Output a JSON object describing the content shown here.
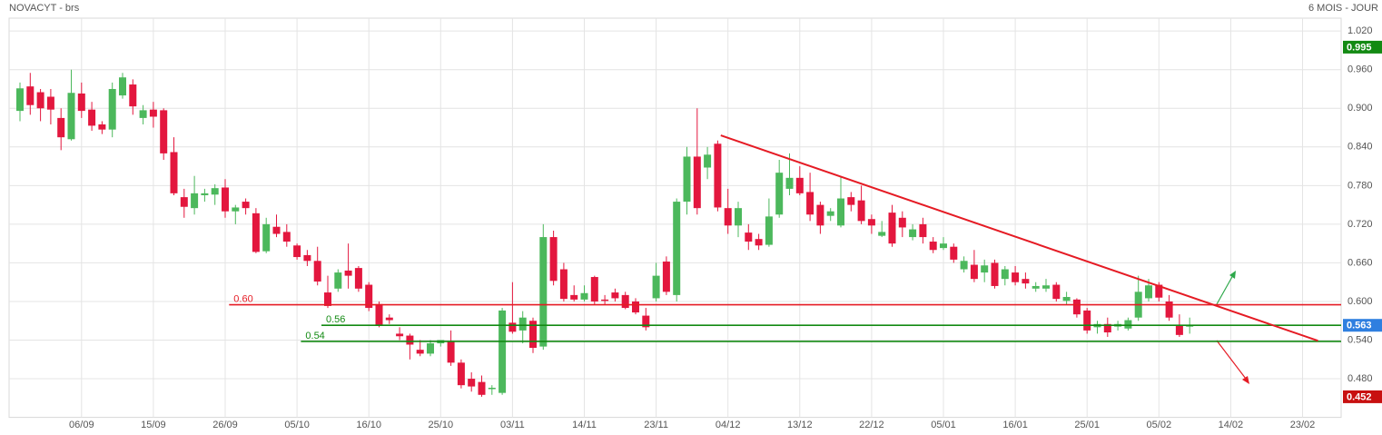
{
  "chart_data": {
    "type": "candlestick",
    "title": "NOVACYT - brs",
    "subtitle": "6 MOIS - JOUR",
    "categories": [
      null,
      null,
      null,
      null,
      null,
      null,
      "06/09",
      null,
      null,
      null,
      null,
      null,
      null,
      "15/09",
      null,
      null,
      null,
      null,
      null,
      null,
      "26/09",
      null,
      null,
      null,
      null,
      null,
      null,
      "05/10",
      null,
      null,
      null,
      null,
      null,
      null,
      "16/10",
      null,
      null,
      null,
      null,
      null,
      null,
      "25/10",
      null,
      null,
      null,
      null,
      null,
      null,
      "03/11",
      null,
      null,
      null,
      null,
      null,
      null,
      "14/11",
      null,
      null,
      null,
      null,
      null,
      null,
      "23/11",
      null,
      null,
      null,
      null,
      null,
      null,
      "04/12",
      null,
      null,
      null,
      null,
      null,
      null,
      "13/12",
      null,
      null,
      null,
      null,
      null,
      null,
      "22/12",
      null,
      null,
      null,
      null,
      null,
      null,
      "05/01",
      null,
      null,
      null,
      null,
      null,
      null,
      "16/01",
      null,
      null,
      null,
      null,
      null,
      null,
      "25/01",
      null,
      null,
      null,
      null,
      null,
      null,
      "05/02",
      null,
      null,
      null,
      null,
      null,
      null,
      "14/02",
      null,
      null,
      null,
      null,
      null,
      null,
      "23/02",
      null,
      null,
      null
    ],
    "open": [
      0.896,
      0.934,
      0.925,
      0.918,
      0.885,
      0.852,
      0.923,
      0.898,
      0.875,
      0.867,
      0.92,
      0.937,
      0.885,
      0.898,
      0.897,
      0.832,
      0.762,
      0.745,
      0.765,
      0.766,
      0.777,
      0.74,
      0.755,
      0.737,
      0.678,
      0.716,
      0.708,
      0.687,
      0.672,
      0.663,
      0.614,
      0.62,
      0.648,
      0.652,
      0.626,
      0.596,
      0.575,
      0.55,
      0.547,
      0.525,
      0.519,
      0.535,
      0.538,
      0.505,
      0.48,
      0.475,
      0.464,
      0.458,
      0.567,
      0.555,
      0.57,
      0.53,
      0.7,
      0.65,
      0.61,
      0.603,
      0.638,
      0.603,
      0.614,
      0.61,
      0.6,
      0.578,
      0.605,
      0.662,
      0.61,
      0.755,
      0.825,
      0.808,
      0.845,
      0.745,
      0.718,
      0.707,
      0.697,
      0.688,
      0.735,
      0.775,
      0.792,
      0.77,
      0.75,
      0.733,
      0.718,
      0.762,
      0.757,
      0.728,
      0.702,
      0.738,
      0.73,
      0.7,
      0.72,
      0.693,
      0.683,
      0.685,
      0.65,
      0.657,
      0.645,
      0.66,
      0.635,
      0.645,
      0.635,
      0.62,
      0.62,
      0.626,
      0.601,
      0.603,
      0.586,
      0.56,
      0.565,
      0.561,
      0.558,
      0.575,
      0.605,
      0.626,
      0.6,
      0.562,
      0.561,
      null,
      null,
      null,
      null,
      null,
      null,
      null,
      null,
      null,
      null,
      null,
      null,
      null,
      null
    ],
    "high": [
      0.94,
      0.955,
      0.93,
      0.93,
      0.9,
      0.96,
      0.94,
      0.91,
      0.88,
      0.94,
      0.955,
      0.945,
      0.905,
      0.91,
      0.9,
      0.855,
      0.775,
      0.795,
      0.775,
      0.782,
      0.79,
      0.75,
      0.76,
      0.745,
      0.73,
      0.735,
      0.72,
      0.69,
      0.68,
      0.685,
      0.64,
      0.65,
      0.69,
      0.655,
      0.63,
      0.6,
      0.58,
      0.56,
      0.55,
      0.54,
      0.54,
      0.54,
      0.555,
      0.51,
      0.49,
      0.485,
      0.47,
      0.59,
      0.63,
      0.585,
      0.575,
      0.72,
      0.71,
      0.66,
      0.625,
      0.625,
      0.64,
      0.61,
      0.62,
      0.615,
      0.605,
      0.59,
      0.66,
      0.67,
      0.76,
      0.84,
      0.9,
      0.84,
      0.85,
      0.775,
      0.755,
      0.72,
      0.705,
      0.76,
      0.82,
      0.83,
      0.81,
      0.8,
      0.755,
      0.745,
      0.795,
      0.77,
      0.78,
      0.735,
      0.725,
      0.75,
      0.74,
      0.72,
      0.73,
      0.7,
      0.7,
      0.69,
      0.67,
      0.68,
      0.665,
      0.665,
      0.655,
      0.655,
      0.645,
      0.63,
      0.635,
      0.63,
      0.615,
      0.605,
      0.59,
      0.57,
      0.575,
      0.57,
      0.575,
      0.64,
      0.635,
      0.63,
      0.61,
      0.58,
      0.575,
      null,
      null,
      null,
      null,
      null,
      null,
      null,
      null,
      null,
      null,
      null,
      null,
      null,
      null
    ],
    "low": [
      0.88,
      0.89,
      0.88,
      0.875,
      0.835,
      0.85,
      0.885,
      0.865,
      0.86,
      0.855,
      0.915,
      0.89,
      0.875,
      0.87,
      0.82,
      0.765,
      0.73,
      0.735,
      0.755,
      0.75,
      0.73,
      0.72,
      0.735,
      0.675,
      0.675,
      0.7,
      0.685,
      0.665,
      0.655,
      0.625,
      0.59,
      0.615,
      0.62,
      0.615,
      0.585,
      0.56,
      0.565,
      0.54,
      0.51,
      0.515,
      0.515,
      0.53,
      0.5,
      0.465,
      0.46,
      0.452,
      0.455,
      0.455,
      0.55,
      0.535,
      0.52,
      0.525,
      0.625,
      0.6,
      0.6,
      0.6,
      0.595,
      0.595,
      0.6,
      0.588,
      0.58,
      0.555,
      0.6,
      0.61,
      0.6,
      0.735,
      0.735,
      0.79,
      0.74,
      0.705,
      0.7,
      0.68,
      0.68,
      0.685,
      0.73,
      0.765,
      0.765,
      0.725,
      0.705,
      0.725,
      0.715,
      0.74,
      0.72,
      0.705,
      0.7,
      0.685,
      0.7,
      0.695,
      0.69,
      0.675,
      0.68,
      0.66,
      0.645,
      0.63,
      0.63,
      0.62,
      0.625,
      0.625,
      0.62,
      0.615,
      0.615,
      0.6,
      0.595,
      0.575,
      0.55,
      0.55,
      0.545,
      0.555,
      0.555,
      0.57,
      0.6,
      0.6,
      0.57,
      0.545,
      0.55,
      null,
      null,
      null,
      null,
      null,
      null,
      null,
      null,
      null,
      null,
      null,
      null,
      null,
      null
    ],
    "close": [
      0.931,
      0.905,
      0.9,
      0.898,
      0.855,
      0.924,
      0.896,
      0.873,
      0.867,
      0.93,
      0.948,
      0.903,
      0.897,
      0.887,
      0.83,
      0.768,
      0.747,
      0.768,
      0.768,
      0.776,
      0.74,
      0.746,
      0.745,
      0.677,
      0.72,
      0.705,
      0.693,
      0.669,
      0.663,
      0.631,
      0.593,
      0.645,
      0.64,
      0.62,
      0.59,
      0.563,
      0.571,
      0.546,
      0.533,
      0.519,
      0.535,
      0.54,
      0.505,
      0.47,
      0.468,
      0.455,
      0.466,
      0.586,
      0.553,
      0.575,
      0.528,
      0.7,
      0.632,
      0.604,
      0.603,
      0.613,
      0.6,
      0.601,
      0.605,
      0.59,
      0.583,
      0.56,
      0.64,
      0.615,
      0.755,
      0.825,
      0.745,
      0.828,
      0.746,
      0.718,
      0.745,
      0.693,
      0.687,
      0.732,
      0.8,
      0.792,
      0.768,
      0.735,
      0.718,
      0.74,
      0.76,
      0.75,
      0.725,
      0.718,
      0.708,
      0.69,
      0.715,
      0.712,
      0.7,
      0.68,
      0.69,
      0.665,
      0.663,
      0.635,
      0.656,
      0.624,
      0.65,
      0.63,
      0.628,
      0.624,
      0.625,
      0.604,
      0.607,
      0.58,
      0.555,
      0.565,
      0.552,
      0.565,
      0.571,
      0.615,
      0.625,
      0.606,
      0.575,
      0.548,
      0.563,
      null,
      null,
      null,
      null,
      null,
      null,
      null,
      null,
      null,
      null,
      null,
      null,
      null,
      null
    ],
    "up_color": "#4cb85c",
    "down_color": "#e3173e",
    "ylim": [
      0.42,
      1.04
    ],
    "yticks": [
      {
        "value": 1.02,
        "label": "1.020"
      },
      {
        "value": 0.96,
        "label": "0.960"
      },
      {
        "value": 0.9,
        "label": "0.900"
      },
      {
        "value": 0.84,
        "label": "0.840"
      },
      {
        "value": 0.78,
        "label": "0.780"
      },
      {
        "value": 0.72,
        "label": "0.720"
      },
      {
        "value": 0.66,
        "label": "0.660"
      },
      {
        "value": 0.6,
        "label": "0.600"
      },
      {
        "value": 0.54,
        "label": "0.540"
      },
      {
        "value": 0.48,
        "label": "0.480"
      }
    ],
    "grid": true,
    "price_labels": [
      {
        "value": 0.995,
        "color": "#138a13"
      },
      {
        "value": 0.563,
        "color": "#2f7fe0"
      },
      {
        "value": 0.452,
        "color": "#c81010"
      }
    ],
    "levels": [
      {
        "value": 0.595,
        "label": "0.60",
        "from": 21,
        "color": "#e51b24"
      },
      {
        "value": 0.563,
        "label": "0.56",
        "from": 30,
        "color": "#138a13"
      },
      {
        "value": 0.538,
        "label": "0.54",
        "from": 28,
        "color": "#138a13"
      }
    ],
    "trendline": {
      "x": [
        68.3,
        126.5
      ],
      "values": [
        0.858,
        0.539
      ],
      "color": "#e51b24"
    }
  }
}
